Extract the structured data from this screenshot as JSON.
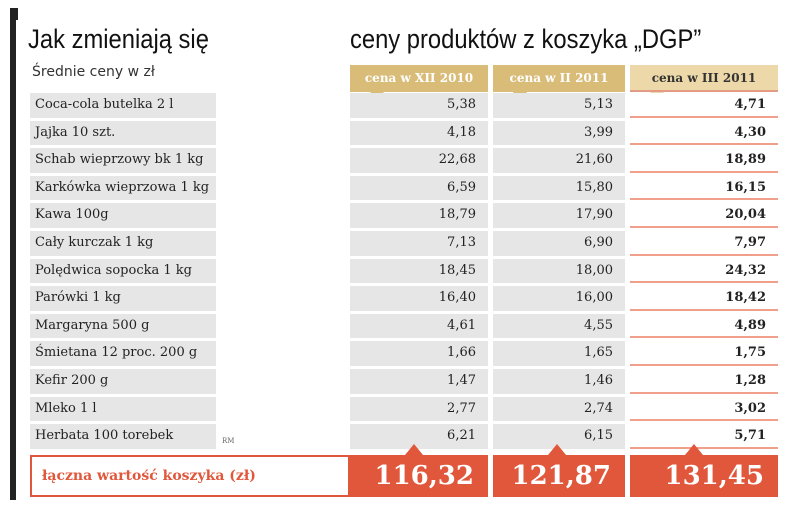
{
  "header": {
    "title_left": "Jak zmieniają się",
    "title_right": "ceny produktów z koszyka „DGP”",
    "subtitle": "Średnie ceny w zł"
  },
  "table": {
    "columns": [
      "cena w XII 2010",
      "cena w II 2011",
      "cena w III 2011"
    ],
    "rows": [
      [
        "Coca-cola butelka 2 l",
        "5,38",
        "5,13",
        "4,71"
      ],
      [
        "Jajka 10 szt.",
        "4,18",
        "3,99",
        "4,30"
      ],
      [
        "Schab wieprzowy bk 1 kg",
        "22,68",
        "21,60",
        "18,89"
      ],
      [
        "Karkówka wieprzowa 1 kg",
        "6,59",
        "15,80",
        "16,15"
      ],
      [
        "Kawa 100g",
        "18,79",
        "17,90",
        "20,04"
      ],
      [
        "Cały kurczak 1 kg",
        "7,13",
        "6,90",
        "7,97"
      ],
      [
        "Polędwica sopocka 1 kg",
        "18,45",
        "18,00",
        "24,32"
      ],
      [
        "Parówki 1 kg",
        "16,40",
        "16,00",
        "18,42"
      ],
      [
        "Margaryna  500 g",
        "4,61",
        "4,55",
        "4,89"
      ],
      [
        "Śmietana 12 proc. 200 g",
        "1,66",
        "1,65",
        "1,75"
      ],
      [
        "Kefir 200 g",
        "1,47",
        "1,46",
        "1,28"
      ],
      [
        "Mleko 1 l",
        "2,77",
        "2,74",
        "3,02"
      ],
      [
        "Herbata  100 torebek",
        "6,21",
        "6,15",
        "5,71"
      ]
    ],
    "total_label": "łączna wartość koszyka (zł)",
    "totals": [
      "116,32",
      "121,87",
      "131,45"
    ]
  },
  "credit": "RM"
}
